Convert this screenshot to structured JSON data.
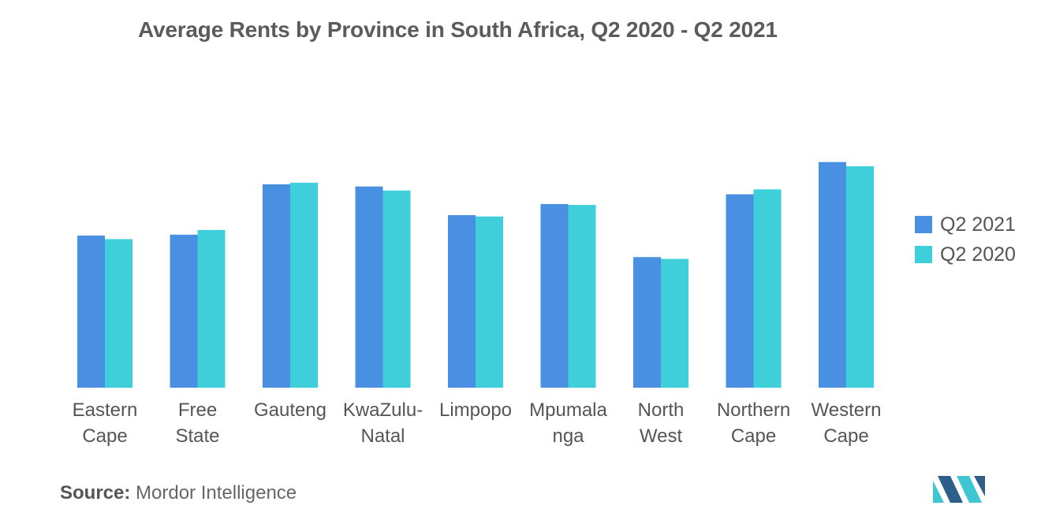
{
  "title": "Average Rents by Province in South Africa, Q2 2020 - Q2 2021",
  "source_label": "Source:",
  "source_value": "Mordor Intelligence",
  "colors": {
    "q2_2021": "#4a90e2",
    "q2_2020": "#3ecfdb",
    "logo_dark": "#2e5f8a",
    "logo_light": "#3ec6d3"
  },
  "legend": [
    {
      "label": "Q2 2021",
      "color": "#4a90e2"
    },
    {
      "label": "Q2 2020",
      "color": "#3ecfdb"
    }
  ],
  "chart_data": {
    "type": "bar",
    "title": "Average Rents by Province in South Africa, Q2 2020 - Q2 2021",
    "categories": [
      [
        "Eastern",
        "Cape"
      ],
      [
        "Free",
        "State"
      ],
      [
        "Gauteng"
      ],
      [
        "KwaZulu-",
        "Natal"
      ],
      [
        "Limpopo"
      ],
      [
        "Mpumala",
        "nga"
      ],
      [
        "North",
        "West"
      ],
      [
        "Northern",
        "Cape"
      ],
      [
        "Western",
        "Cape"
      ]
    ],
    "series": [
      {
        "name": "Q2 2021",
        "color": "#4a90e2",
        "values": [
          6850,
          6890,
          9160,
          9060,
          7770,
          8270,
          5880,
          8710,
          10160
        ]
      },
      {
        "name": "Q2 2020",
        "color": "#3ecfdb",
        "values": [
          6690,
          7100,
          9230,
          8880,
          7710,
          8230,
          5800,
          8930,
          9970
        ]
      }
    ],
    "ylim": [
      0,
      11000
    ],
    "grid": false,
    "legend_position": "right"
  }
}
